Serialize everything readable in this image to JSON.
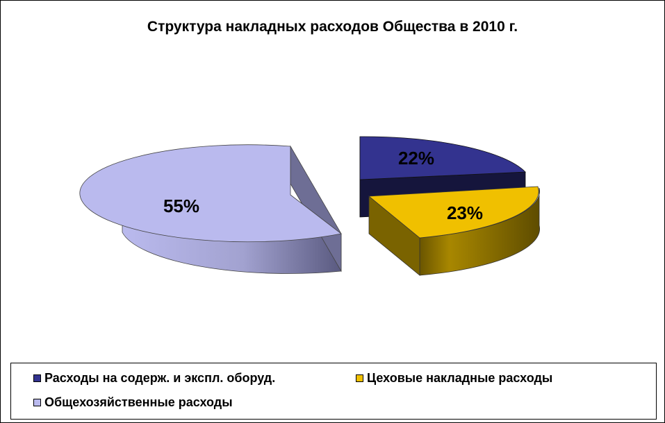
{
  "chart_data": {
    "type": "pie",
    "title": "Структура  накладных расходов Общества  в 2010 г.",
    "slices": [
      {
        "name": "Расходы на содерж. и экспл. оборуд.",
        "value": 22,
        "label": "22%",
        "color": "#33338f"
      },
      {
        "name": "Цеховые накладные расходы",
        "value": 23,
        "label": "23%",
        "color": "#f0c000"
      },
      {
        "name": "Общехозяйственные расходы",
        "value": 55,
        "label": "55%",
        "color": "#babaee"
      }
    ],
    "exploded": true,
    "three_d": true,
    "legend_position": "bottom"
  }
}
